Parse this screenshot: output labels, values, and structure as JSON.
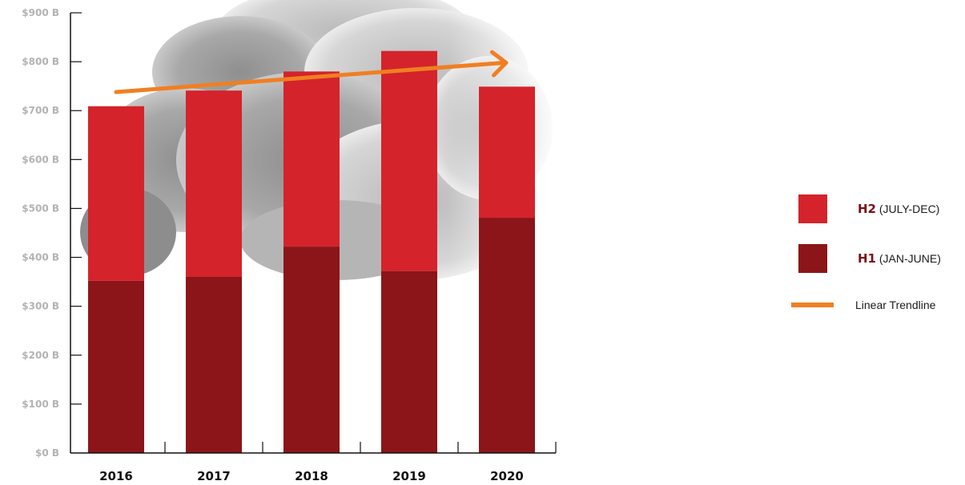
{
  "chart_data": {
    "type": "bar",
    "stacked": true,
    "categories": [
      "2016",
      "2017",
      "2018",
      "2019",
      "2020"
    ],
    "series": [
      {
        "name": "H1",
        "name_detail": "(JAN-JUNE)",
        "values": [
          352,
          360,
          422,
          372,
          481
        ]
      },
      {
        "name": "H2",
        "name_detail": "(JULY-DEC)",
        "values": [
          357,
          381,
          358,
          450,
          268
        ]
      }
    ],
    "trendline": {
      "name": "Linear Trendline",
      "start": 738,
      "end": 798
    },
    "ylim": [
      0,
      900
    ],
    "yticks": [
      "$0 B",
      "$100 B",
      "$200 B",
      "$300 B",
      "$400 B",
      "$500 B",
      "$600 B",
      "$700 B",
      "$800 B",
      "$900 B"
    ],
    "legend_position": "right",
    "grid": false
  },
  "colors": {
    "h1": "#8b1519",
    "h2": "#d4232b",
    "trendline": "#f07f22",
    "axis": "#111111",
    "ytick_text": "#b3b3b3",
    "smoke": "#9a9a9a"
  }
}
